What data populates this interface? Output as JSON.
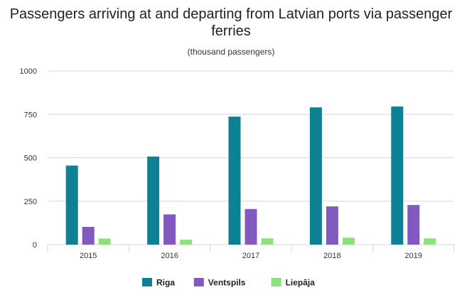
{
  "chart_data": {
    "type": "bar",
    "title": "Passengers arriving at and departing from Latvian ports via passenger ferries",
    "subtitle": "(thousand passengers)",
    "categories": [
      "2015",
      "2016",
      "2017",
      "2018",
      "2019"
    ],
    "series": [
      {
        "name": "Riga",
        "color": "#0e8093",
        "values": [
          455,
          507,
          737,
          790,
          795
        ]
      },
      {
        "name": "Ventspils",
        "color": "#8159bf",
        "values": [
          102,
          174,
          205,
          220,
          228
        ]
      },
      {
        "name": "Liepāja",
        "color": "#8ee07a",
        "values": [
          35,
          28,
          36,
          40,
          36
        ]
      }
    ],
    "ylim": [
      0,
      1000
    ],
    "yticks": [
      "0",
      "250",
      "500",
      "750",
      "1000"
    ],
    "grid": true,
    "legend": "bottom-center"
  }
}
